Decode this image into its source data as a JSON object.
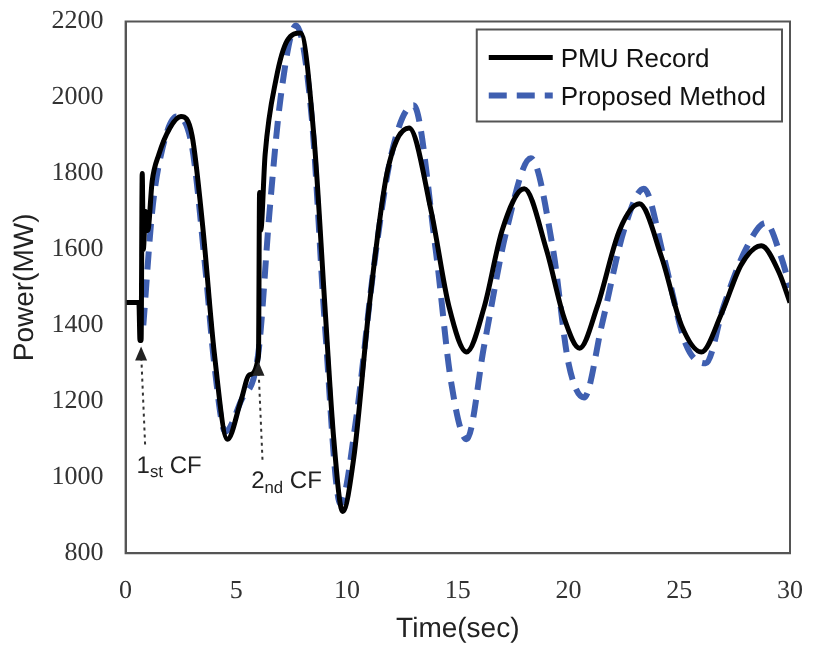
{
  "chart_data": {
    "type": "line",
    "xlabel": "Time(sec)",
    "ylabel": "Power(MW)",
    "xlim": [
      0,
      30
    ],
    "xticks": [
      0,
      5,
      10,
      15,
      20,
      25,
      30
    ],
    "ylim": [
      800,
      2200
    ],
    "yticks": [
      800,
      1000,
      1200,
      1400,
      1600,
      1800,
      2000,
      2200
    ],
    "grid": false,
    "legend": "top right",
    "marker": "none",
    "series": [
      {
        "name": "PMU Record",
        "color": "#000000",
        "line_style": "solid",
        "x": [
          0,
          0.6,
          0.65,
          0.7,
          0.75,
          0.8,
          0.9,
          1.0,
          1.2,
          1.5,
          2,
          2.5,
          3,
          3.5,
          4,
          4.6,
          5.2,
          5.6,
          6.0,
          6.05,
          6.1,
          6.3,
          6.8,
          7.3,
          7.9,
          8.5,
          9,
          9.4,
          9.8,
          10.3,
          11,
          11.8,
          12.8,
          13.8,
          14.6,
          15.4,
          16.2,
          17,
          18,
          19,
          19.8,
          20.5,
          21.3,
          22.3,
          23.2,
          24.2,
          25.1,
          26,
          26.9,
          27.8,
          28.7,
          29.5,
          30
        ],
        "values": [
          1460,
          1460,
          1360,
          1360,
          1800,
          1600,
          1700,
          1650,
          1780,
          1850,
          1920,
          1950,
          1900,
          1650,
          1330,
          1100,
          1200,
          1270,
          1320,
          1750,
          1650,
          1850,
          2050,
          2150,
          2170,
          1900,
          1450,
          1100,
          910,
          1050,
          1450,
          1800,
          1920,
          1700,
          1450,
          1330,
          1450,
          1650,
          1760,
          1600,
          1420,
          1340,
          1450,
          1650,
          1720,
          1580,
          1400,
          1330,
          1430,
          1560,
          1610,
          1540,
          1460
        ]
      },
      {
        "name": "Proposed Method",
        "color": "#3f5fb0",
        "line_style": "dashed",
        "x": [
          0.8,
          1.2,
          1.6,
          2.3,
          3,
          3.6,
          4,
          4.5,
          5.2,
          6,
          6.5,
          7,
          7.7,
          8.4,
          9,
          9.7,
          10.4,
          11.2,
          12,
          13,
          14,
          14.7,
          15.4,
          16.2,
          17.2,
          18.3,
          19.3,
          20,
          20.7,
          21.5,
          22.5,
          23.4,
          24.3,
          25.3,
          26.2,
          27,
          28,
          28.9,
          29.6,
          30
        ],
        "values": [
          1400,
          1700,
          1850,
          1950,
          1870,
          1550,
          1300,
          1120,
          1200,
          1330,
          1700,
          2000,
          2190,
          1950,
          1400,
          930,
          1150,
          1550,
          1850,
          1980,
          1600,
          1250,
          1100,
          1350,
          1650,
          1840,
          1600,
          1300,
          1210,
          1400,
          1650,
          1760,
          1580,
          1350,
          1300,
          1450,
          1600,
          1670,
          1580,
          1500
        ]
      }
    ],
    "annotations": [
      {
        "text": "1$_{st}$ CF",
        "x": 0.7,
        "y": 1360
      },
      {
        "text": "2$_{nd}$ CF",
        "x": 6.0,
        "y": 1320
      }
    ]
  }
}
